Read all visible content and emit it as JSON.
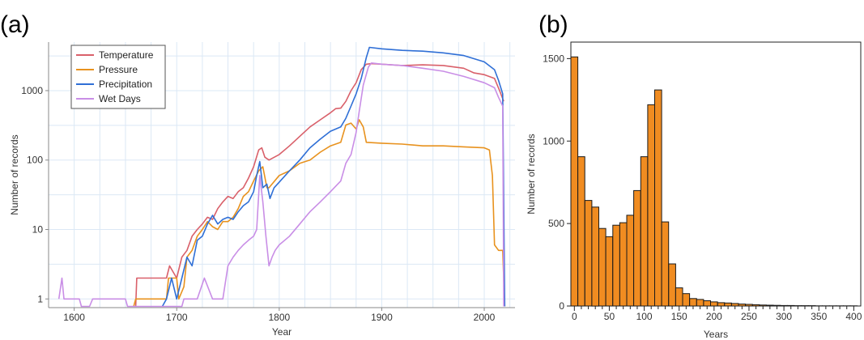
{
  "panels": {
    "a_label": "(a)",
    "b_label": "(b)"
  },
  "chart_data": [
    {
      "type": "line",
      "title": "",
      "xlabel": "Year",
      "ylabel": "Number of records",
      "xlim": [
        1575,
        2030
      ],
      "ylim": [
        0.75,
        5000
      ],
      "yscale": "log",
      "grid": true,
      "legend_position": "top-left",
      "x_ticks": [
        1600,
        1700,
        1800,
        1900,
        2000
      ],
      "x_tick_labels": [
        "1600",
        "1700",
        "1800",
        "1900",
        "2000"
      ],
      "y_ticks": [
        1,
        10,
        100,
        1000
      ],
      "y_tick_labels": [
        "1",
        "10",
        "100",
        "1000"
      ],
      "series": [
        {
          "name": "Temperature",
          "color": "#d9606a",
          "points": [
            [
              1660,
              0.78
            ],
            [
              1661,
              2
            ],
            [
              1690,
              2
            ],
            [
              1693,
              3
            ],
            [
              1700,
              2
            ],
            [
              1705,
              4
            ],
            [
              1710,
              5
            ],
            [
              1715,
              8
            ],
            [
              1720,
              10
            ],
            [
              1725,
              12
            ],
            [
              1730,
              15
            ],
            [
              1735,
              14
            ],
            [
              1740,
              20
            ],
            [
              1745,
              25
            ],
            [
              1750,
              30
            ],
            [
              1755,
              28
            ],
            [
              1760,
              35
            ],
            [
              1765,
              40
            ],
            [
              1770,
              55
            ],
            [
              1775,
              80
            ],
            [
              1780,
              140
            ],
            [
              1783,
              150
            ],
            [
              1786,
              110
            ],
            [
              1790,
              100
            ],
            [
              1800,
              120
            ],
            [
              1810,
              160
            ],
            [
              1820,
              220
            ],
            [
              1830,
              300
            ],
            [
              1840,
              380
            ],
            [
              1850,
              480
            ],
            [
              1855,
              550
            ],
            [
              1860,
              560
            ],
            [
              1865,
              700
            ],
            [
              1870,
              1000
            ],
            [
              1875,
              1300
            ],
            [
              1880,
              2000
            ],
            [
              1885,
              2400
            ],
            [
              1890,
              2450
            ],
            [
              1900,
              2400
            ],
            [
              1920,
              2300
            ],
            [
              1940,
              2350
            ],
            [
              1960,
              2300
            ],
            [
              1980,
              2100
            ],
            [
              1990,
              1800
            ],
            [
              2000,
              1700
            ],
            [
              2010,
              1500
            ],
            [
              2015,
              1000
            ],
            [
              2019,
              700
            ]
          ]
        },
        {
          "name": "Pressure",
          "color": "#e8921e",
          "points": [
            [
              1658,
              0.78
            ],
            [
              1660,
              1
            ],
            [
              1690,
              1
            ],
            [
              1692,
              2
            ],
            [
              1700,
              2
            ],
            [
              1702,
              1
            ],
            [
              1707,
              1.5
            ],
            [
              1710,
              4
            ],
            [
              1715,
              5
            ],
            [
              1720,
              8
            ],
            [
              1725,
              10
            ],
            [
              1730,
              13
            ],
            [
              1735,
              11
            ],
            [
              1740,
              10
            ],
            [
              1745,
              13
            ],
            [
              1750,
              13
            ],
            [
              1755,
              15
            ],
            [
              1760,
              20
            ],
            [
              1765,
              30
            ],
            [
              1770,
              35
            ],
            [
              1775,
              50
            ],
            [
              1780,
              70
            ],
            [
              1784,
              80
            ],
            [
              1788,
              40
            ],
            [
              1790,
              40
            ],
            [
              1800,
              60
            ],
            [
              1810,
              70
            ],
            [
              1820,
              90
            ],
            [
              1830,
              100
            ],
            [
              1840,
              130
            ],
            [
              1850,
              160
            ],
            [
              1860,
              180
            ],
            [
              1865,
              320
            ],
            [
              1870,
              340
            ],
            [
              1875,
              280
            ],
            [
              1878,
              380
            ],
            [
              1882,
              300
            ],
            [
              1885,
              180
            ],
            [
              1900,
              175
            ],
            [
              1920,
              170
            ],
            [
              1940,
              160
            ],
            [
              1960,
              160
            ],
            [
              1980,
              155
            ],
            [
              2000,
              150
            ],
            [
              2005,
              140
            ],
            [
              2008,
              60
            ],
            [
              2010,
              6
            ],
            [
              2014,
              5
            ],
            [
              2018,
              5
            ],
            [
              2020,
              0.78
            ]
          ]
        },
        {
          "name": "Precipitation",
          "color": "#2f6fd6",
          "points": [
            [
              1686,
              0.78
            ],
            [
              1690,
              1
            ],
            [
              1695,
              2
            ],
            [
              1700,
              1
            ],
            [
              1705,
              2
            ],
            [
              1710,
              4
            ],
            [
              1715,
              3
            ],
            [
              1720,
              7
            ],
            [
              1725,
              8
            ],
            [
              1730,
              12
            ],
            [
              1735,
              16
            ],
            [
              1740,
              12
            ],
            [
              1745,
              14
            ],
            [
              1750,
              15
            ],
            [
              1755,
              14
            ],
            [
              1760,
              18
            ],
            [
              1765,
              22
            ],
            [
              1770,
              25
            ],
            [
              1775,
              35
            ],
            [
              1778,
              60
            ],
            [
              1781,
              95
            ],
            [
              1784,
              40
            ],
            [
              1788,
              45
            ],
            [
              1791,
              28
            ],
            [
              1795,
              40
            ],
            [
              1800,
              48
            ],
            [
              1810,
              70
            ],
            [
              1820,
              100
            ],
            [
              1830,
              150
            ],
            [
              1840,
              200
            ],
            [
              1850,
              260
            ],
            [
              1860,
              300
            ],
            [
              1865,
              400
            ],
            [
              1870,
              600
            ],
            [
              1875,
              900
            ],
            [
              1880,
              1500
            ],
            [
              1885,
              3000
            ],
            [
              1888,
              4200
            ],
            [
              1900,
              4000
            ],
            [
              1920,
              3800
            ],
            [
              1940,
              3700
            ],
            [
              1960,
              3500
            ],
            [
              1980,
              3200
            ],
            [
              2000,
              2600
            ],
            [
              2010,
              2000
            ],
            [
              2014,
              1400
            ],
            [
              2018,
              900
            ],
            [
              2020,
              0.78
            ]
          ]
        },
        {
          "name": "Wet Days",
          "color": "#c98ee6",
          "points": [
            [
              1585,
              1
            ],
            [
              1588,
              2
            ],
            [
              1590,
              1
            ],
            [
              1600,
              1
            ],
            [
              1605,
              1
            ],
            [
              1607,
              0.78
            ],
            [
              1615,
              0.78
            ],
            [
              1618,
              1
            ],
            [
              1650,
              1
            ],
            [
              1652,
              0.78
            ],
            [
              1705,
              0.78
            ],
            [
              1707,
              1
            ],
            [
              1712,
              1
            ],
            [
              1720,
              1
            ],
            [
              1727,
              2
            ],
            [
              1735,
              1
            ],
            [
              1745,
              1
            ],
            [
              1750,
              3
            ],
            [
              1755,
              4
            ],
            [
              1760,
              5
            ],
            [
              1765,
              6
            ],
            [
              1770,
              7
            ],
            [
              1775,
              8
            ],
            [
              1778,
              10
            ],
            [
              1781,
              60
            ],
            [
              1784,
              25
            ],
            [
              1787,
              8
            ],
            [
              1790,
              3
            ],
            [
              1793,
              4
            ],
            [
              1796,
              5
            ],
            [
              1800,
              6
            ],
            [
              1810,
              8
            ],
            [
              1820,
              12
            ],
            [
              1830,
              18
            ],
            [
              1840,
              25
            ],
            [
              1850,
              35
            ],
            [
              1860,
              50
            ],
            [
              1865,
              90
            ],
            [
              1870,
              120
            ],
            [
              1875,
              250
            ],
            [
              1878,
              500
            ],
            [
              1882,
              1200
            ],
            [
              1887,
              2200
            ],
            [
              1890,
              2500
            ],
            [
              1900,
              2400
            ],
            [
              1920,
              2300
            ],
            [
              1940,
              2100
            ],
            [
              1960,
              1900
            ],
            [
              1980,
              1600
            ],
            [
              2000,
              1300
            ],
            [
              2010,
              1100
            ],
            [
              2014,
              800
            ],
            [
              2018,
              600
            ],
            [
              2019,
              0.78
            ]
          ]
        }
      ]
    },
    {
      "type": "bar",
      "title": "",
      "xlabel": "Years",
      "ylabel": "Number of records",
      "bin_width": 10,
      "xlim": [
        -5,
        410
      ],
      "ylim": [
        0,
        1600
      ],
      "grid": false,
      "x_ticks": [
        0,
        50,
        100,
        150,
        200,
        250,
        300,
        350,
        400
      ],
      "x_tick_labels": [
        "0",
        "50",
        "100",
        "150",
        "200",
        "250",
        "300",
        "350",
        "400"
      ],
      "y_ticks": [
        0,
        500,
        1000,
        1500
      ],
      "y_tick_labels": [
        "0",
        "500",
        "1000",
        "1500"
      ],
      "bar_color": "#f08c21",
      "bins": [
        0,
        10,
        20,
        30,
        40,
        50,
        60,
        70,
        80,
        90,
        100,
        110,
        120,
        130,
        140,
        150,
        160,
        170,
        180,
        190,
        200,
        210,
        220,
        230,
        240,
        250,
        260,
        270,
        280,
        290,
        300,
        310,
        320,
        330,
        340,
        350,
        360,
        370,
        380,
        390,
        400
      ],
      "values": [
        1510,
        905,
        640,
        600,
        470,
        420,
        490,
        505,
        550,
        700,
        905,
        1220,
        1310,
        510,
        255,
        110,
        75,
        45,
        40,
        32,
        25,
        20,
        18,
        15,
        12,
        10,
        8,
        6,
        5,
        4,
        3,
        3,
        2,
        2,
        2,
        1,
        1,
        1,
        1,
        1,
        1
      ]
    }
  ]
}
